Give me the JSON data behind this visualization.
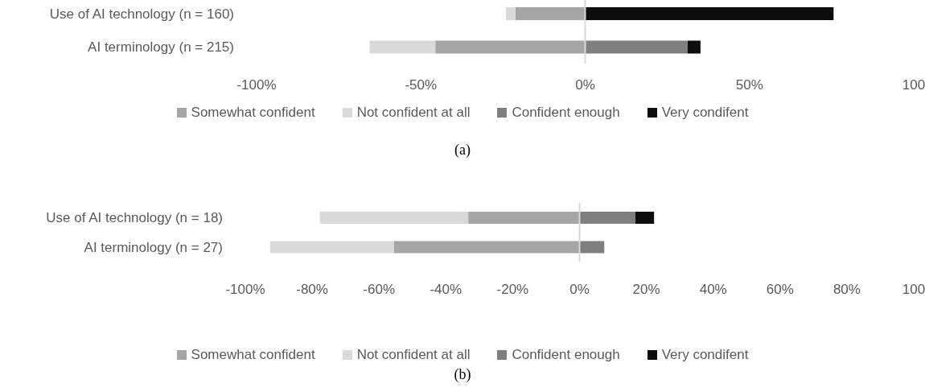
{
  "chart_data": [
    {
      "type": "bar",
      "orientation": "horizontal",
      "stacked": true,
      "categories": [
        "Use of AI technology (n = 160)",
        "AI terminology (n = 215)"
      ],
      "series": [
        {
          "name": "Somewhat confident",
          "color": "#a5a5a5",
          "values": [
            -21.2,
            -45.6
          ]
        },
        {
          "name": "Not confident at all",
          "color": "#d9d9d9",
          "values": [
            -2.9,
            -20
          ]
        },
        {
          "name": "Confident enough",
          "color": "#7f7f7f",
          "values": [
            0,
            31.2
          ]
        },
        {
          "name": "Very condifent",
          "color": "#0d0d0d",
          "values": [
            75.6,
            3.9
          ]
        }
      ],
      "xlim": [
        -100,
        100
      ],
      "xticks": [
        {
          "value": -100,
          "label": "-100%"
        },
        {
          "value": -50,
          "label": "-50%"
        },
        {
          "value": 0,
          "label": "0%"
        },
        {
          "value": 50,
          "label": "50%"
        },
        {
          "value": 100,
          "label": "100"
        }
      ],
      "ref_lines": [
        {
          "axis": "x",
          "value": 0,
          "color": "#d9d9d9"
        }
      ],
      "grid": false,
      "legend": "bottom",
      "annotations": [
        "(a)"
      ]
    },
    {
      "type": "bar",
      "orientation": "horizontal",
      "stacked": true,
      "categories": [
        "Use of AI technology (n = 18)",
        "AI terminology (n = 27)"
      ],
      "series": [
        {
          "name": "Somewhat confident",
          "color": "#a5a5a5",
          "values": [
            -33.3,
            -55.6
          ]
        },
        {
          "name": "Not confident at all",
          "color": "#d9d9d9",
          "values": [
            -44.4,
            -37
          ]
        },
        {
          "name": "Confident enough",
          "color": "#7f7f7f",
          "values": [
            16.7,
            7.4
          ]
        },
        {
          "name": "Very condifent",
          "color": "#0d0d0d",
          "values": [
            5.6,
            0
          ]
        }
      ],
      "xlim": [
        -100,
        100
      ],
      "xticks": [
        {
          "value": -100,
          "label": "-100%"
        },
        {
          "value": -80,
          "label": "-80%"
        },
        {
          "value": -60,
          "label": "-60%"
        },
        {
          "value": -40,
          "label": "-40%"
        },
        {
          "value": -20,
          "label": "-20%"
        },
        {
          "value": 0,
          "label": "0%"
        },
        {
          "value": 20,
          "label": "20%"
        },
        {
          "value": 40,
          "label": "40%"
        },
        {
          "value": 60,
          "label": "60%"
        },
        {
          "value": 80,
          "label": "80%"
        },
        {
          "value": 100,
          "label": "100"
        }
      ],
      "ref_lines": [
        {
          "axis": "x",
          "value": 0,
          "color": "#d9d9d9"
        }
      ],
      "grid": false,
      "legend": "bottom",
      "annotations": [
        "(b)"
      ]
    }
  ]
}
